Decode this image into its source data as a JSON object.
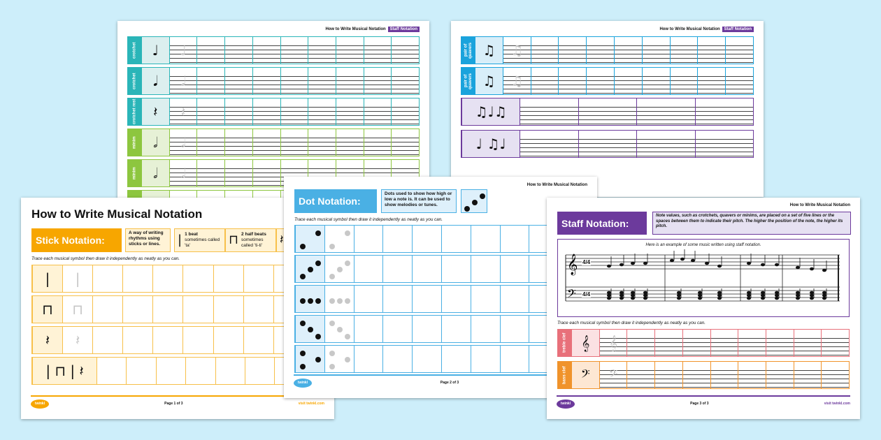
{
  "colors": {
    "background": "#cdeefa",
    "stick": "#f7a600",
    "dot": "#4ab0e4",
    "staff": "#6c3a9c",
    "crotchet": "#2ab5b8",
    "minim": "#8dc63f",
    "quaver": "#1aa3dc",
    "treble": "#e8707a",
    "bass": "#f0932b"
  },
  "doc_title": "How to Write Musical Notation",
  "staff_badge": "Staff Notation",
  "instruction": "Trace each musical symbol then draw it independently as neatly as you can.",
  "site": "visit twinkl.com",
  "logo": "twinkl",
  "page_back_left": {
    "rows": [
      {
        "label": "crotchet",
        "symbol": "♩",
        "color": "crotchet"
      },
      {
        "label": "crotchet",
        "symbol": "𝅘𝅥",
        "color": "crotchet"
      },
      {
        "label": "crotchet rest",
        "symbol": "𝄽",
        "color": "crotchet"
      },
      {
        "label": "minim",
        "symbol": "𝅗𝅥",
        "color": "minim"
      },
      {
        "label": "minim",
        "symbol": "𝅗𝅥",
        "color": "minim"
      },
      {
        "label": "minim",
        "symbol": "𝅗𝅥",
        "color": "minim"
      }
    ]
  },
  "page_back_right": {
    "rows": [
      {
        "label": "pair of quavers",
        "symbol": "♫"
      },
      {
        "label": "pair of quavers",
        "symbol": "♫"
      }
    ],
    "bars": [
      {
        "symbol": "♫♩♫"
      },
      {
        "symbol": "♩ ♫♩"
      }
    ]
  },
  "page1": {
    "heading": "How to Write Musical Notation",
    "title": "Stick Notation:",
    "description": "A way of writing rhythms using sticks or lines.",
    "examples": [
      {
        "symbol": "|",
        "title": "1 beat",
        "text": "sometimes called 'ta'"
      },
      {
        "symbol": "⊓",
        "title": "2 half beats",
        "text": "sometimes called 'ti-ti'"
      },
      {
        "symbol": "𝄽",
        "title": "",
        "text": ""
      }
    ],
    "rows": [
      {
        "symbol": "|"
      },
      {
        "symbol": "⊓"
      },
      {
        "symbol": "𝄽"
      },
      {
        "symbol": "| ⊓ | 𝄽"
      }
    ],
    "page": "Page 1 of 3"
  },
  "page2": {
    "title": "Dot Notation:",
    "description": "Dots used to show how high or low a note is. It can be used to show melodies or tunes.",
    "page": "Page 2 of 3"
  },
  "page3": {
    "title": "Staff Notation:",
    "description": "Note values, such as crotchets, quavers or minims, are placed on a set of five lines or the spaces between them to indicate their pitch. The higher the position of the note, the higher its pitch.",
    "example_caption": "Here is an example of some music written using staff notation.",
    "time_signature": "4/4",
    "rows": [
      {
        "label": "treble clef",
        "symbol": "𝄞",
        "color": "treble"
      },
      {
        "label": "bass clef",
        "symbol": "𝄢",
        "color": "bass"
      }
    ],
    "page": "Page 3 of 3"
  }
}
